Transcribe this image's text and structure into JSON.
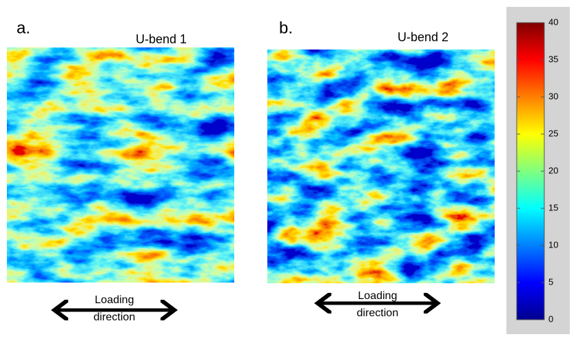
{
  "panels": [
    {
      "letter": "a.",
      "title": "U-bend 1",
      "loading_label": [
        "Loading",
        "direction"
      ]
    },
    {
      "letter": "b.",
      "title": "U-bend 2",
      "loading_label": [
        "Loading",
        "direction"
      ]
    }
  ],
  "colorbar": {
    "lim": [
      0,
      40
    ],
    "ticks": [
      0,
      5,
      10,
      15,
      20,
      25,
      30,
      35,
      40
    ]
  }
}
